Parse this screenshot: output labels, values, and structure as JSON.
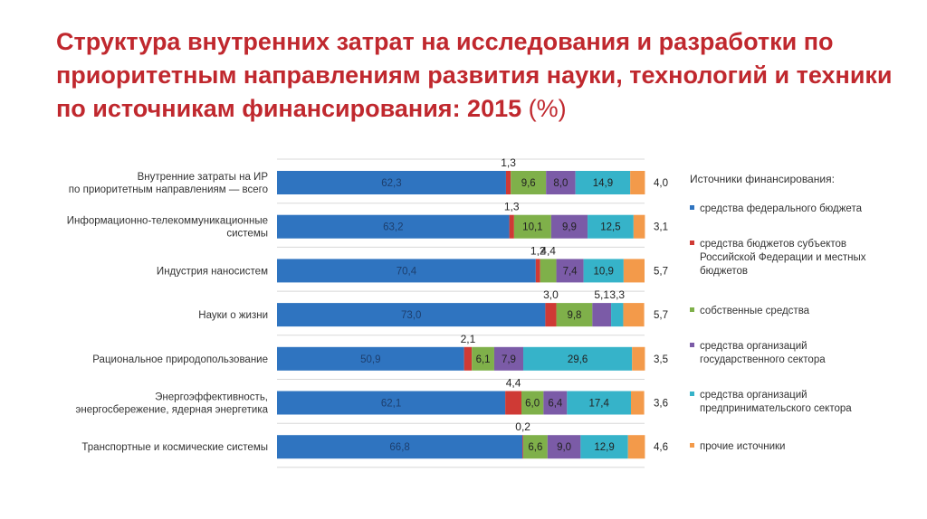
{
  "title": "Структура внутренних затрат на исследования и разработки по приоритетным направлениям развития науки, технологий и техники по источникам финансирования: 2015",
  "title_suffix": "(%)",
  "chart_data": {
    "type": "bar",
    "orientation": "horizontal",
    "stacked": true,
    "xlim": [
      0,
      100
    ],
    "categories": [
      [
        "Внутренние затраты на ИР",
        "по приоритетным направлениям — всего"
      ],
      [
        "Информационно-телекоммуникационные",
        "системы"
      ],
      [
        "Индустрия наносистем"
      ],
      [
        "Науки о жизни"
      ],
      [
        "Рациональное природопользование"
      ],
      [
        "Энергоэффективность,",
        "энергосбережение, ядерная энергетика"
      ],
      [
        "Транспортные и космические системы"
      ]
    ],
    "legend_title": "Источники финансирования:",
    "legend_position": "right",
    "series": [
      {
        "name": "средства федерального бюджета",
        "color": "#2f74c0",
        "values": [
          62.3,
          63.2,
          70.4,
          73.0,
          50.9,
          62.1,
          66.8
        ],
        "labels": [
          "62,3",
          "63,2",
          "70,4",
          "73,0",
          "50,9",
          "62,1",
          "66,8"
        ]
      },
      {
        "name": "средства бюджетов субъектов Российской Федерации и местных бюджетов",
        "color": "#cf3a35",
        "values": [
          1.3,
          1.3,
          1.2,
          3.0,
          2.1,
          4.4,
          0.2
        ],
        "labels": [
          "1,3",
          "1,3",
          "1,2",
          "3,0",
          "2,1",
          "4,4",
          "0,2"
        ]
      },
      {
        "name": "собственные средства",
        "color": "#7fb04a",
        "values": [
          9.6,
          10.1,
          4.4,
          9.8,
          6.1,
          6.0,
          6.6
        ],
        "labels": [
          "9,6",
          "10,1",
          "4,4",
          "9,8",
          "6,1",
          "6,0",
          "6,6"
        ]
      },
      {
        "name": "средства организаций государственного сектора",
        "color": "#7b5ba7",
        "values": [
          8.0,
          9.9,
          7.4,
          5.1,
          7.9,
          6.4,
          9.0
        ],
        "labels": [
          "8,0",
          "9,9",
          "7,4",
          "5,1",
          "7,9",
          "6,4",
          "9,0"
        ]
      },
      {
        "name": "средства организаций предпринимательского сектора",
        "color": "#36b3c9",
        "values": [
          14.9,
          12.5,
          10.9,
          3.3,
          29.6,
          17.4,
          12.9
        ],
        "labels": [
          "14,9",
          "12,5",
          "10,9",
          "3,3",
          "29,6",
          "17,4",
          "12,9"
        ]
      },
      {
        "name": "прочие источники",
        "color": "#f39a4a",
        "values": [
          4.0,
          3.1,
          5.7,
          5.7,
          3.5,
          3.6,
          4.6
        ],
        "labels": [
          "4,0",
          "3,1",
          "5,7",
          "5,7",
          "3,5",
          "3,6",
          "4,6"
        ]
      }
    ]
  }
}
